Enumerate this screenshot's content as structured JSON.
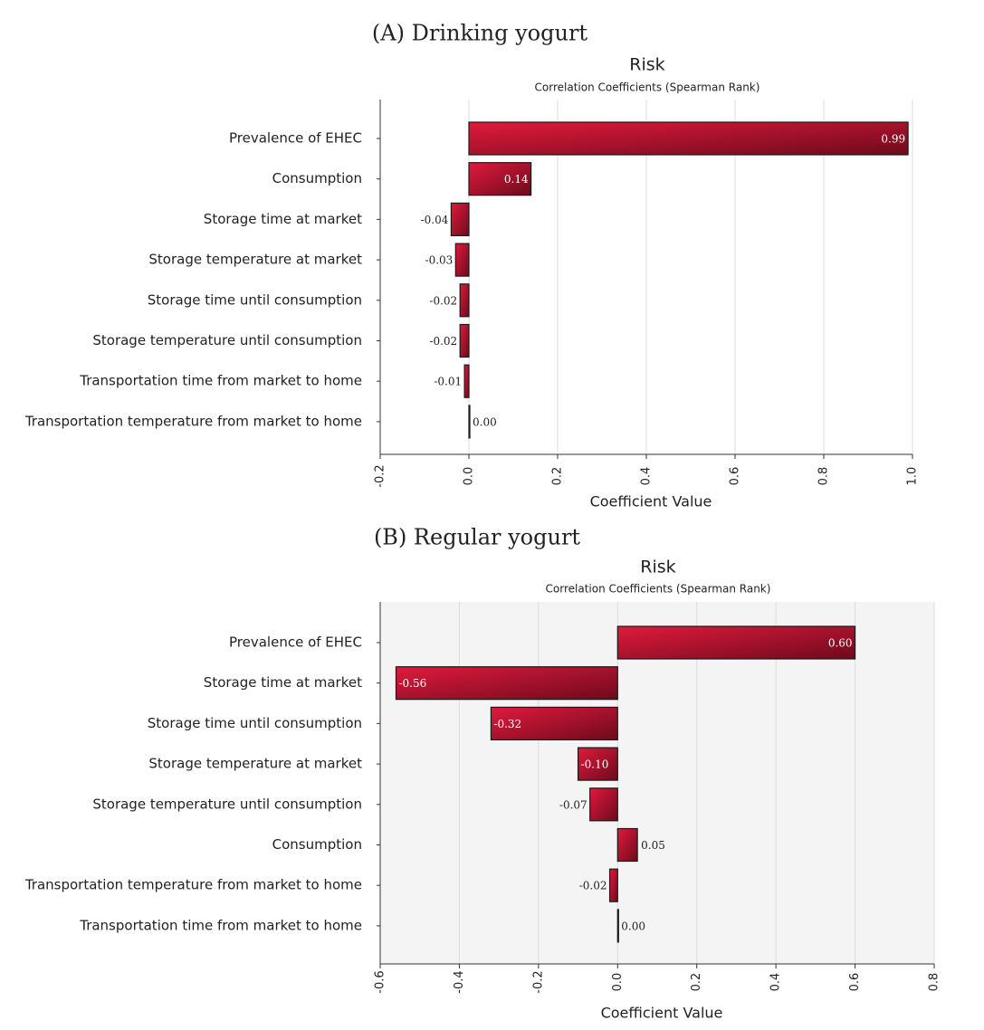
{
  "chart_data": [
    {
      "type": "bar",
      "orientation": "horizontal",
      "panel_label": "(A) Drinking yogurt",
      "title": "Risk",
      "subtitle": "Correlation Coefficients (Spearman Rank)",
      "x_label": "Coefficient Value",
      "categories": [
        "Prevalence of EHEC",
        "Consumption",
        "Storage time at market",
        "Storage temperature at market",
        "Storage time until consumption",
        "Storage temperature until consumption",
        "Transportation time from market to home",
        "Transportation temperature from market to home"
      ],
      "values": [
        0.99,
        0.14,
        -0.04,
        -0.03,
        -0.02,
        -0.02,
        -0.01,
        0.0
      ],
      "value_labels": [
        "0.99",
        "0.14",
        "-0.04",
        "-0.03",
        "-0.02",
        "-0.02",
        "-0.01",
        "0.00"
      ],
      "color": "#c8102e",
      "plot_background": "#ffffff",
      "xlim": [
        -0.2,
        1.0
      ],
      "xticks": [
        -0.2,
        {
          "value": 0,
          "label": "0.0"
        },
        0.2,
        0.4,
        0.6,
        0.8,
        {
          "value": 1,
          "label": "1.0"
        }
      ],
      "grid": true
    },
    {
      "type": "bar",
      "orientation": "horizontal",
      "panel_label": "(B) Regular yogurt",
      "title": "Risk",
      "subtitle": "Correlation Coefficients (Spearman Rank)",
      "x_label": "Coefficient Value",
      "categories": [
        "Prevalence of EHEC",
        "Storage time at market",
        "Storage time until consumption",
        "Storage temperature at market",
        "Storage temperature until consumption",
        "Consumption",
        "Transportation temperature from market to home",
        "Transportation time from market to home"
      ],
      "values": [
        0.6,
        -0.56,
        -0.32,
        -0.1,
        -0.07,
        0.05,
        -0.02,
        0.0
      ],
      "value_labels": [
        "0.60",
        "-0.56",
        "-0.32",
        "-0.10",
        "-0.07",
        "0.05",
        "-0.02",
        "0.00"
      ],
      "color": "#c8102e",
      "plot_background": "#f4f4f4",
      "xlim": [
        -0.6,
        0.8
      ],
      "xticks": [
        -0.6,
        -0.4,
        -0.2,
        {
          "value": 0,
          "label": "0.0"
        },
        0.2,
        0.4,
        0.6,
        0.8
      ],
      "grid": true
    }
  ]
}
